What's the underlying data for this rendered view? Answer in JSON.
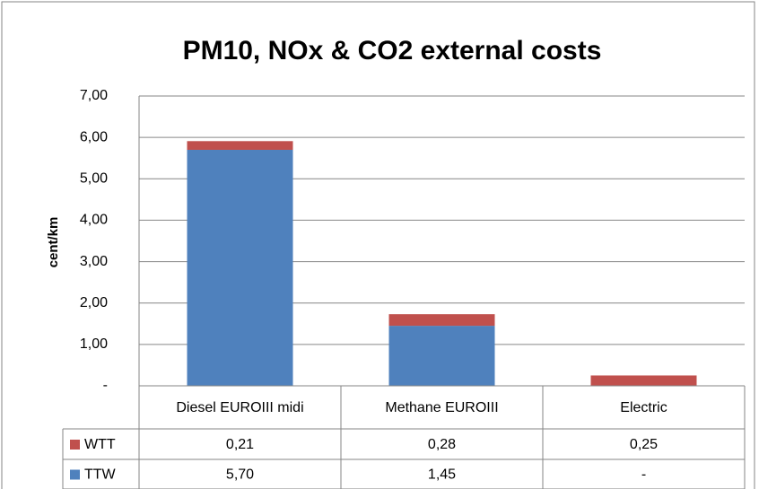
{
  "chart_data": {
    "type": "stacked_bar",
    "title": "PM10, NOx & CO2 external costs",
    "y_label": "cent/km",
    "categories": [
      "Diesel EUROIII midi",
      "Methane EUROIII",
      "Electric"
    ],
    "series": [
      {
        "name": "WTT",
        "color": "#c0504d",
        "values": [
          0.21,
          0.28,
          0.25
        ],
        "value_labels": [
          "0,21",
          "0,28",
          "0,25"
        ]
      },
      {
        "name": "TTW",
        "color": "#4f81bd",
        "values": [
          5.7,
          1.45,
          0
        ],
        "value_labels": [
          "5,70",
          "1,45",
          "-"
        ]
      }
    ],
    "ylim": [
      0,
      7
    ],
    "yticks": [
      {
        "value": 0,
        "label": "-"
      },
      {
        "value": 1,
        "label": "1,00"
      },
      {
        "value": 2,
        "label": "2,00"
      },
      {
        "value": 3,
        "label": "3,00"
      },
      {
        "value": 4,
        "label": "4,00"
      },
      {
        "value": 5,
        "label": "5,00"
      },
      {
        "value": 6,
        "label": "6,00"
      },
      {
        "value": 7,
        "label": "7,00"
      }
    ],
    "grid": true
  }
}
